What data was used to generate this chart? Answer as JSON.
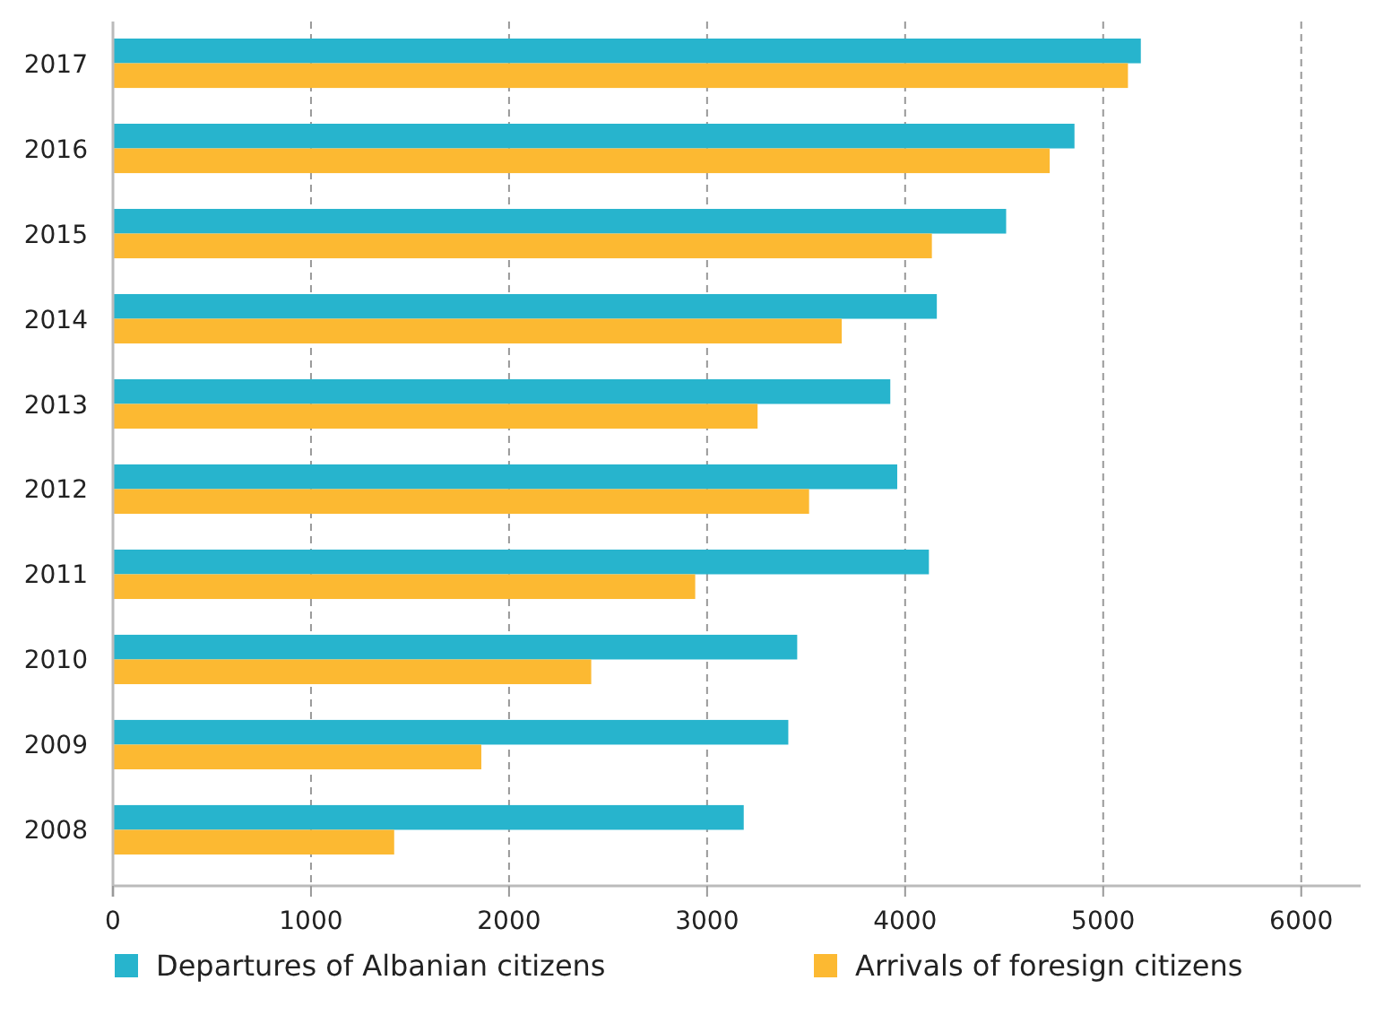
{
  "chart_data": {
    "type": "bar",
    "orientation": "horizontal",
    "categories": [
      "2017",
      "2016",
      "2015",
      "2014",
      "2013",
      "2012",
      "2011",
      "2010",
      "2009",
      "2008"
    ],
    "series": [
      {
        "name": "Departures of Albanian citizens",
        "color": "#27b4cd",
        "values": [
          5190,
          4855,
          4510,
          4160,
          3925,
          3960,
          4120,
          3455,
          3410,
          3185
        ]
      },
      {
        "name": "Arrivals of foresign citizens",
        "color": "#fcb932",
        "values": [
          5125,
          4730,
          4135,
          3680,
          3255,
          3515,
          2940,
          2415,
          1860,
          1420
        ]
      }
    ],
    "xlim": [
      0,
      6300
    ],
    "xticks": [
      0,
      1000,
      2000,
      3000,
      4000,
      5000,
      6000
    ],
    "grid": "x",
    "legend": "bottom"
  }
}
